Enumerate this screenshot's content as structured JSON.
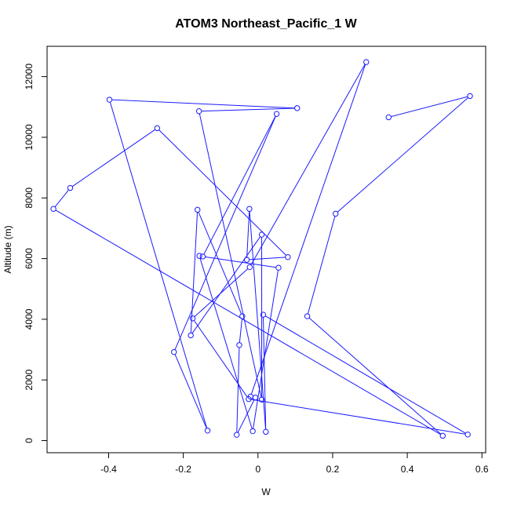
{
  "chart_data": {
    "type": "line",
    "title": "ATOM3 Northeast_Pacific_1 W",
    "xlabel": "W",
    "ylabel": "Altitude (m)",
    "xlim": [
      -0.565,
      0.61
    ],
    "ylim": [
      -400,
      13000
    ],
    "xticks": [
      -0.4,
      -0.2,
      0,
      0.2,
      0.4,
      0.6
    ],
    "xtick_labels": [
      "-0.4",
      "-0.2",
      "0",
      "0.2",
      "0.4",
      "0.6"
    ],
    "yticks": [
      0,
      2000,
      4000,
      6000,
      8000,
      10000,
      12000
    ],
    "yticks_labels": [
      "0",
      "2000",
      "4000",
      "6000",
      "8000",
      "10000",
      "12000"
    ],
    "grid": false,
    "legend": "none",
    "series_color": "#1a1aff",
    "marker": "open-circle",
    "x": [
      0.35,
      0.568,
      0.208,
      0.132,
      0.495,
      -0.548,
      -0.503,
      -0.27,
      0.08,
      -0.03,
      -0.023,
      0.021,
      0.014,
      0.562,
      -0.025,
      -0.175,
      -0.022,
      0.29,
      -0.02,
      -0.007,
      -0.057,
      -0.05,
      -0.042,
      -0.162,
      -0.18,
      0.01,
      0.01,
      -0.158,
      0.105,
      -0.398,
      -0.135,
      -0.225,
      0.05,
      -0.148,
      0.055,
      -0.014,
      -0.157
    ],
    "y": [
      10660,
      11360,
      7480,
      4100,
      160,
      7640,
      8330,
      10300,
      6050,
      5960,
      7640,
      290,
      4150,
      200,
      1370,
      4030,
      5720,
      12480,
      1450,
      1420,
      190,
      3150,
      4100,
      7610,
      3470,
      6790,
      1350,
      10860,
      10960,
      11240,
      330,
      2920,
      10770,
      6070,
      5700,
      310,
      6090
    ]
  }
}
